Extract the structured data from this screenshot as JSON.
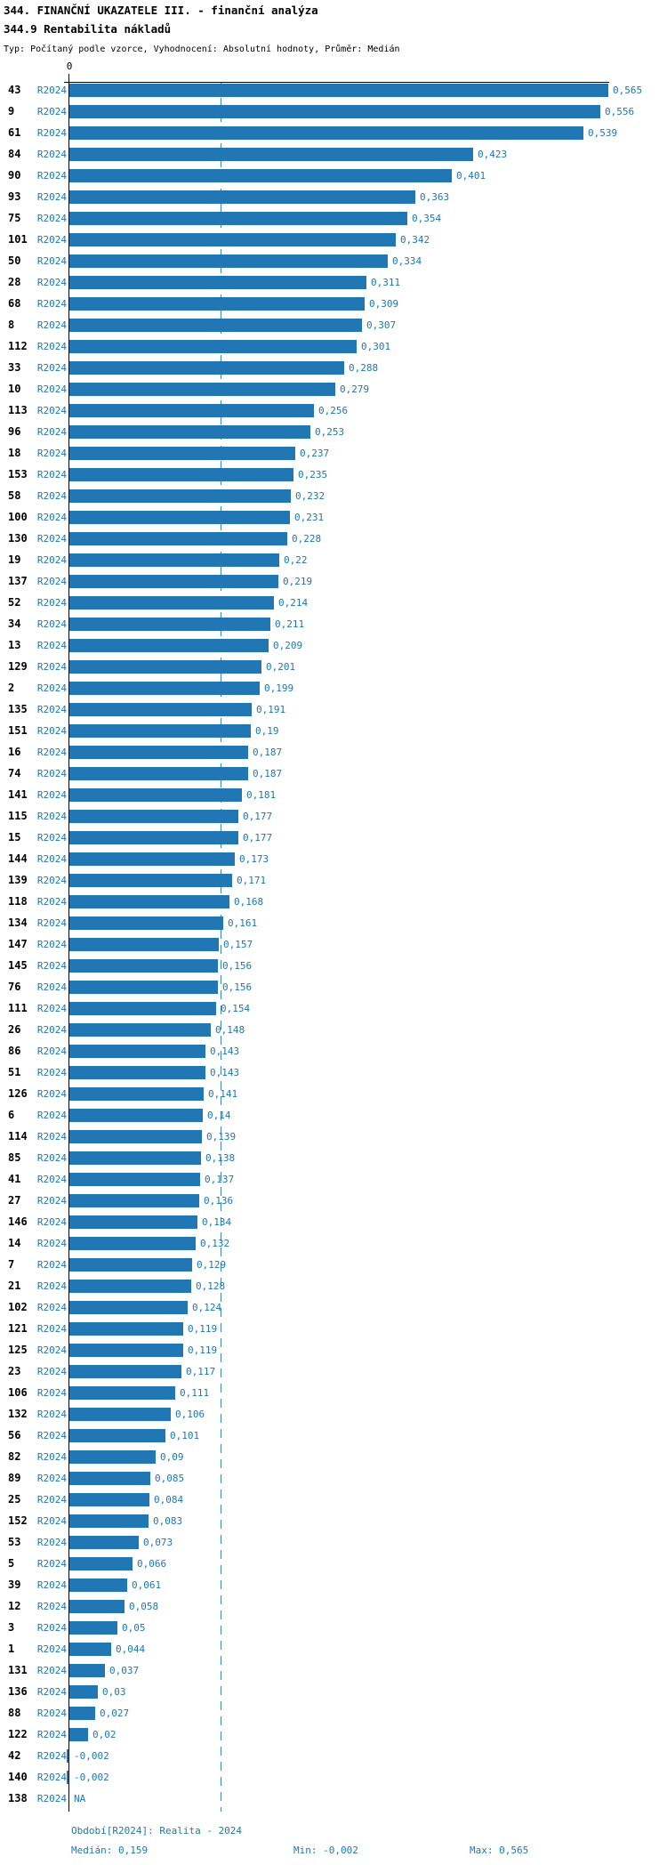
{
  "header": {
    "title": "344. FINANČNÍ UKAZATELE III. - finanční analýza",
    "subtitle": "344.9 Rentabilita nákladů",
    "type_line": "Typ: Počítaný podle vzorce, Vyhodnocení: Absolutní hodnoty, Průměr: Medián"
  },
  "colors": {
    "bar": "#2077b4",
    "blue_text": "#1f77b4",
    "axis": "#000000",
    "median_line": "#3b87c0"
  },
  "chart_data": {
    "type": "bar",
    "orientation": "horizontal",
    "title": "344.9 Rentabilita nákladů",
    "series_label": "R2024",
    "axis": {
      "zero_label": "0",
      "x_min": -0.002,
      "x_max": 0.565,
      "median_value": 0.159,
      "median_line_style": "dashed"
    },
    "rows": [
      {
        "id": "43",
        "value": 0.565,
        "label": "0,565"
      },
      {
        "id": "9",
        "value": 0.556,
        "label": "0,556"
      },
      {
        "id": "61",
        "value": 0.539,
        "label": "0,539"
      },
      {
        "id": "84",
        "value": 0.423,
        "label": "0,423"
      },
      {
        "id": "90",
        "value": 0.401,
        "label": "0,401"
      },
      {
        "id": "93",
        "value": 0.363,
        "label": "0,363"
      },
      {
        "id": "75",
        "value": 0.354,
        "label": "0,354"
      },
      {
        "id": "101",
        "value": 0.342,
        "label": "0,342"
      },
      {
        "id": "50",
        "value": 0.334,
        "label": "0,334"
      },
      {
        "id": "28",
        "value": 0.311,
        "label": "0,311"
      },
      {
        "id": "68",
        "value": 0.309,
        "label": "0,309"
      },
      {
        "id": "8",
        "value": 0.307,
        "label": "0,307"
      },
      {
        "id": "112",
        "value": 0.301,
        "label": "0,301"
      },
      {
        "id": "33",
        "value": 0.288,
        "label": "0,288"
      },
      {
        "id": "10",
        "value": 0.279,
        "label": "0,279"
      },
      {
        "id": "113",
        "value": 0.256,
        "label": "0,256"
      },
      {
        "id": "96",
        "value": 0.253,
        "label": "0,253"
      },
      {
        "id": "18",
        "value": 0.237,
        "label": "0,237"
      },
      {
        "id": "153",
        "value": 0.235,
        "label": "0,235"
      },
      {
        "id": "58",
        "value": 0.232,
        "label": "0,232"
      },
      {
        "id": "100",
        "value": 0.231,
        "label": "0,231"
      },
      {
        "id": "130",
        "value": 0.228,
        "label": "0,228"
      },
      {
        "id": "19",
        "value": 0.22,
        "label": "0,22"
      },
      {
        "id": "137",
        "value": 0.219,
        "label": "0,219"
      },
      {
        "id": "52",
        "value": 0.214,
        "label": "0,214"
      },
      {
        "id": "34",
        "value": 0.211,
        "label": "0,211"
      },
      {
        "id": "13",
        "value": 0.209,
        "label": "0,209"
      },
      {
        "id": "129",
        "value": 0.201,
        "label": "0,201"
      },
      {
        "id": "2",
        "value": 0.199,
        "label": "0,199"
      },
      {
        "id": "135",
        "value": 0.191,
        "label": "0,191"
      },
      {
        "id": "151",
        "value": 0.19,
        "label": "0,19"
      },
      {
        "id": "16",
        "value": 0.187,
        "label": "0,187"
      },
      {
        "id": "74",
        "value": 0.187,
        "label": "0,187"
      },
      {
        "id": "141",
        "value": 0.181,
        "label": "0,181"
      },
      {
        "id": "115",
        "value": 0.177,
        "label": "0,177"
      },
      {
        "id": "15",
        "value": 0.177,
        "label": "0,177"
      },
      {
        "id": "144",
        "value": 0.173,
        "label": "0,173"
      },
      {
        "id": "139",
        "value": 0.171,
        "label": "0,171"
      },
      {
        "id": "118",
        "value": 0.168,
        "label": "0,168"
      },
      {
        "id": "134",
        "value": 0.161,
        "label": "0,161"
      },
      {
        "id": "147",
        "value": 0.157,
        "label": "0,157"
      },
      {
        "id": "145",
        "value": 0.156,
        "label": "0,156"
      },
      {
        "id": "76",
        "value": 0.156,
        "label": "0,156"
      },
      {
        "id": "111",
        "value": 0.154,
        "label": "0,154"
      },
      {
        "id": "26",
        "value": 0.148,
        "label": "0,148"
      },
      {
        "id": "86",
        "value": 0.143,
        "label": "0,143"
      },
      {
        "id": "51",
        "value": 0.143,
        "label": "0,143"
      },
      {
        "id": "126",
        "value": 0.141,
        "label": "0,141"
      },
      {
        "id": "6",
        "value": 0.14,
        "label": "0,14"
      },
      {
        "id": "114",
        "value": 0.139,
        "label": "0,139"
      },
      {
        "id": "85",
        "value": 0.138,
        "label": "0,138"
      },
      {
        "id": "41",
        "value": 0.137,
        "label": "0,137"
      },
      {
        "id": "27",
        "value": 0.136,
        "label": "0,136"
      },
      {
        "id": "146",
        "value": 0.134,
        "label": "0,134"
      },
      {
        "id": "14",
        "value": 0.132,
        "label": "0,132"
      },
      {
        "id": "7",
        "value": 0.129,
        "label": "0,129"
      },
      {
        "id": "21",
        "value": 0.128,
        "label": "0,128"
      },
      {
        "id": "102",
        "value": 0.124,
        "label": "0,124"
      },
      {
        "id": "121",
        "value": 0.119,
        "label": "0,119"
      },
      {
        "id": "125",
        "value": 0.119,
        "label": "0,119"
      },
      {
        "id": "23",
        "value": 0.117,
        "label": "0,117"
      },
      {
        "id": "106",
        "value": 0.111,
        "label": "0,111"
      },
      {
        "id": "132",
        "value": 0.106,
        "label": "0,106"
      },
      {
        "id": "56",
        "value": 0.101,
        "label": "0,101"
      },
      {
        "id": "82",
        "value": 0.09,
        "label": "0,09"
      },
      {
        "id": "89",
        "value": 0.085,
        "label": "0,085"
      },
      {
        "id": "25",
        "value": 0.084,
        "label": "0,084"
      },
      {
        "id": "152",
        "value": 0.083,
        "label": "0,083"
      },
      {
        "id": "53",
        "value": 0.073,
        "label": "0,073"
      },
      {
        "id": "5",
        "value": 0.066,
        "label": "0,066"
      },
      {
        "id": "39",
        "value": 0.061,
        "label": "0,061"
      },
      {
        "id": "12",
        "value": 0.058,
        "label": "0,058"
      },
      {
        "id": "3",
        "value": 0.05,
        "label": "0,05"
      },
      {
        "id": "1",
        "value": 0.044,
        "label": "0,044"
      },
      {
        "id": "131",
        "value": 0.037,
        "label": "0,037"
      },
      {
        "id": "136",
        "value": 0.03,
        "label": "0,03"
      },
      {
        "id": "88",
        "value": 0.027,
        "label": "0,027"
      },
      {
        "id": "122",
        "value": 0.02,
        "label": "0,02"
      },
      {
        "id": "42",
        "value": -0.002,
        "label": "-0,002"
      },
      {
        "id": "140",
        "value": -0.002,
        "label": "-0,002"
      },
      {
        "id": "138",
        "value": null,
        "label": "NA"
      }
    ]
  },
  "footer": {
    "period_line": "Období[R2024]: Realita - 2024",
    "median_label": "Medián: 0,159",
    "min_label": "Min: -0,002",
    "max_label": "Max: 0,565"
  }
}
